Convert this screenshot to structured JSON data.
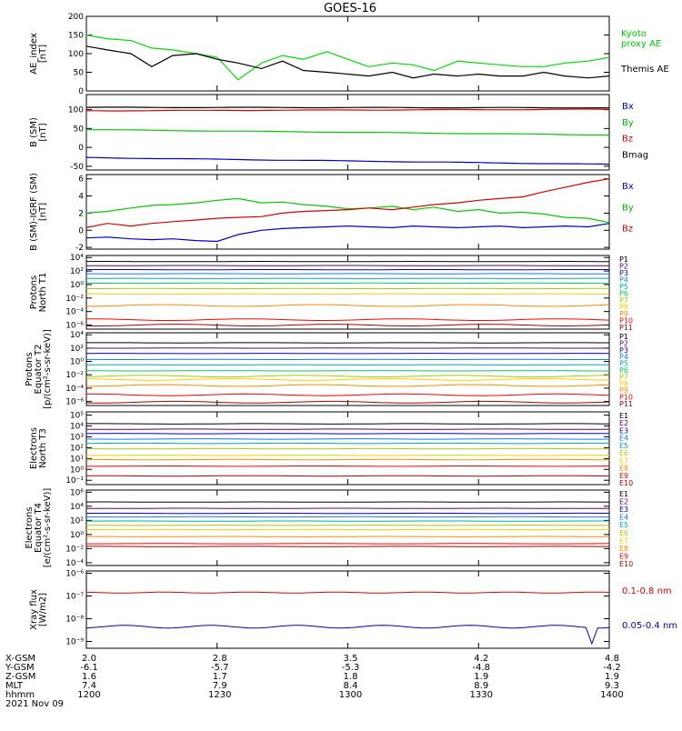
{
  "title": "GOES-16",
  "chart_data": [
    {
      "type": "line",
      "id": "ae",
      "ylabel": "AE_index\n[nT]",
      "yscale": "linear",
      "ylim": [
        0,
        200
      ],
      "yticks": [
        0,
        50,
        100,
        150,
        200
      ],
      "ytick_labels": [
        "0",
        "50",
        "100",
        "150",
        "200"
      ],
      "x_hours": [
        12.0,
        12.08,
        12.17,
        12.25,
        12.33,
        12.42,
        12.5,
        12.58,
        12.67,
        12.75,
        12.83,
        12.92,
        13.0,
        13.08,
        13.17,
        13.25,
        13.33,
        13.42,
        13.5,
        13.58,
        13.67,
        13.75,
        13.83,
        13.92,
        14.0
      ],
      "legend": [
        {
          "label": "Kyoto\nproxy AE",
          "color": "#00cc00"
        },
        {
          "label": "Themis AE",
          "color": "#000000"
        }
      ],
      "series": [
        {
          "name": "Kyoto proxy AE",
          "color": "#00dd00",
          "values": [
            150,
            140,
            135,
            115,
            110,
            100,
            90,
            30,
            75,
            95,
            85,
            105,
            85,
            65,
            75,
            70,
            55,
            80,
            75,
            70,
            65,
            65,
            75,
            80,
            90
          ]
        },
        {
          "name": "Themis AE",
          "color": "#000000",
          "values": [
            120,
            110,
            100,
            65,
            95,
            100,
            85,
            75,
            60,
            80,
            55,
            50,
            45,
            40,
            50,
            35,
            45,
            40,
            45,
            40,
            40,
            50,
            40,
            35,
            40
          ]
        }
      ]
    },
    {
      "type": "line",
      "id": "bsm",
      "ylabel": "B (SM)\n[nT]",
      "yscale": "linear",
      "ylim": [
        -60,
        140
      ],
      "yticks": [
        -50,
        0,
        50,
        100
      ],
      "ytick_labels": [
        "-50",
        "0",
        "50",
        "100"
      ],
      "legend": [
        {
          "label": "Bx",
          "color": "#0000cc"
        },
        {
          "label": "By",
          "color": "#00bb00"
        },
        {
          "label": "Bz",
          "color": "#dd0000"
        },
        {
          "label": "Bmag",
          "color": "#000000"
        }
      ],
      "series": [
        {
          "name": "Bmag",
          "color": "#000000",
          "start": 106,
          "end": 105
        },
        {
          "name": "Bz",
          "color": "#dd0000",
          "start": 97,
          "end": 101
        },
        {
          "name": "By",
          "color": "#00cc00",
          "start": 47,
          "end": 33
        },
        {
          "name": "Bx",
          "color": "#0000cc",
          "start": -27,
          "end": -45
        }
      ]
    },
    {
      "type": "line",
      "id": "bdiff",
      "ylabel": "B (SM)-IGRF (SM)\n[nT]",
      "yscale": "linear",
      "ylim": [
        -2.2,
        6.5
      ],
      "yticks": [
        -2,
        0,
        2,
        4,
        6
      ],
      "ytick_labels": [
        "-2",
        "0",
        "2",
        "4",
        "6"
      ],
      "legend": [
        {
          "label": "Bx",
          "color": "#0000cc"
        },
        {
          "label": "By",
          "color": "#00bb00"
        },
        {
          "label": "Bz",
          "color": "#dd0000"
        }
      ],
      "x_hours": [
        12.0,
        12.08,
        12.17,
        12.25,
        12.33,
        12.42,
        12.5,
        12.58,
        12.67,
        12.75,
        12.83,
        12.92,
        13.0,
        13.08,
        13.17,
        13.25,
        13.33,
        13.42,
        13.5,
        13.58,
        13.67,
        13.75,
        13.83,
        13.92,
        14.0
      ],
      "series": [
        {
          "name": "By",
          "color": "#00cc00",
          "values": [
            2.0,
            2.2,
            2.6,
            2.9,
            3.0,
            3.2,
            3.5,
            3.7,
            3.2,
            3.3,
            3.0,
            2.8,
            2.5,
            2.6,
            2.8,
            2.4,
            2.7,
            2.2,
            2.4,
            2.0,
            2.1,
            1.9,
            1.5,
            1.4,
            0.9
          ]
        },
        {
          "name": "Bz",
          "color": "#dd0000",
          "values": [
            0.3,
            0.8,
            0.5,
            0.8,
            1.0,
            1.2,
            1.4,
            1.5,
            1.6,
            2.0,
            2.2,
            2.3,
            2.4,
            2.6,
            2.4,
            2.7,
            3.0,
            3.2,
            3.5,
            3.7,
            3.9,
            4.5,
            5.0,
            5.6,
            6.0
          ]
        },
        {
          "name": "Bx",
          "color": "#0000cc",
          "values": [
            -0.9,
            -0.8,
            -1.0,
            -1.1,
            -1.0,
            -1.2,
            -1.3,
            -0.5,
            0.0,
            0.2,
            0.3,
            0.4,
            0.5,
            0.4,
            0.3,
            0.5,
            0.4,
            0.3,
            0.4,
            0.5,
            0.3,
            0.4,
            0.5,
            0.4,
            0.8
          ]
        }
      ]
    },
    {
      "type": "line",
      "id": "prot-t1",
      "ylabel": "Protons\nNorth T1",
      "yscale": "log",
      "ylim": [
        -6.6,
        4.3
      ],
      "yticks": [
        4,
        2,
        0,
        -2,
        -4,
        -6
      ],
      "ytick_labels": [
        "10⁴",
        "10²",
        "10⁰",
        "10⁻²",
        "10⁻⁴",
        "10⁻⁶"
      ],
      "legend": [
        {
          "label": "P1",
          "color": "#000000"
        },
        {
          "label": "P2",
          "color": "#660066"
        },
        {
          "label": "P3",
          "color": "#0000cc"
        },
        {
          "label": "P4",
          "color": "#1a75ff"
        },
        {
          "label": "P5",
          "color": "#00aaaa"
        },
        {
          "label": "P6",
          "color": "#00cc66"
        },
        {
          "label": "P7",
          "color": "#aacc00"
        },
        {
          "label": "P8",
          "color": "#ffcc00"
        },
        {
          "label": "P9",
          "color": "#ff8800"
        },
        {
          "label": "P10",
          "color": "#ff0000"
        },
        {
          "label": "P11",
          "color": "#aa0000"
        }
      ],
      "levels": [
        3.4,
        2.8,
        2.2,
        1.6,
        0.9,
        0.2,
        -0.6,
        -1.4,
        -3.1,
        -5.2,
        -6.0
      ]
    },
    {
      "type": "line",
      "id": "prot-t2",
      "ylabel": "Protons\nEquator T2\n[p/(cm²-s-sr-keV)]",
      "yscale": "log",
      "ylim": [
        -6.6,
        4.3
      ],
      "yticks": [
        4,
        2,
        0,
        -2,
        -4,
        -6
      ],
      "ytick_labels": [
        "10⁴",
        "10²",
        "10⁰",
        "10⁻²",
        "10⁻⁴",
        "10⁻⁶"
      ],
      "legend": [
        {
          "label": "P1",
          "color": "#000000"
        },
        {
          "label": "P2",
          "color": "#660066"
        },
        {
          "label": "P3",
          "color": "#0000cc"
        },
        {
          "label": "P4",
          "color": "#1a75ff"
        },
        {
          "label": "P5",
          "color": "#00aaaa"
        },
        {
          "label": "P6",
          "color": "#00cc66"
        },
        {
          "label": "P7",
          "color": "#aacc00"
        },
        {
          "label": "P8",
          "color": "#ffcc00"
        },
        {
          "label": "P9",
          "color": "#ff8800"
        },
        {
          "label": "P10",
          "color": "#ff0000"
        },
        {
          "label": "P11",
          "color": "#aa0000"
        }
      ],
      "levels": [
        2.8,
        2.0,
        1.2,
        0.3,
        -0.5,
        -1.4,
        -2.2,
        -2.7,
        -3.6,
        -5.0,
        -6.1
      ]
    },
    {
      "type": "line",
      "id": "elec-t3",
      "ylabel": "Electrons\nNorth T3",
      "yscale": "log",
      "ylim": [
        -1.4,
        5.3
      ],
      "yticks": [
        5,
        4,
        3,
        2,
        1,
        0,
        -1
      ],
      "ytick_labels": [
        "10⁵",
        "10⁴",
        "10³",
        "10²",
        "10¹",
        "10⁰",
        "10⁻¹"
      ],
      "legend": [
        {
          "label": "E1",
          "color": "#000000"
        },
        {
          "label": "E2",
          "color": "#660066"
        },
        {
          "label": "E3",
          "color": "#0000cc"
        },
        {
          "label": "E4",
          "color": "#1a75ff"
        },
        {
          "label": "E5",
          "color": "#00aaaa"
        },
        {
          "label": "E6",
          "color": "#aacc00"
        },
        {
          "label": "E7",
          "color": "#ffcc00"
        },
        {
          "label": "E8",
          "color": "#ff8800"
        },
        {
          "label": "E9",
          "color": "#ff0000"
        },
        {
          "label": "E10",
          "color": "#aa0000"
        }
      ],
      "levels": [
        4.2,
        3.7,
        3.3,
        2.8,
        2.4,
        1.9,
        1.3,
        0.9,
        0.3,
        -0.6
      ]
    },
    {
      "type": "line",
      "id": "elec-t4",
      "ylabel": "Electrons\nEquator T4\n[e/(cm²-s-sr-keV)]",
      "yscale": "log",
      "ylim": [
        -4.4,
        6.3
      ],
      "yticks": [
        6,
        4,
        2,
        0,
        -2,
        -4
      ],
      "ytick_labels": [
        "10⁶",
        "10⁴",
        "10²",
        "10⁰",
        "10⁻²",
        "10⁻⁴"
      ],
      "legend": [
        {
          "label": "E1",
          "color": "#000000"
        },
        {
          "label": "E2",
          "color": "#660066"
        },
        {
          "label": "E3",
          "color": "#0000cc"
        },
        {
          "label": "E4",
          "color": "#1a75ff"
        },
        {
          "label": "E5",
          "color": "#00aaaa"
        },
        {
          "label": "E6",
          "color": "#aacc00"
        },
        {
          "label": "E7",
          "color": "#ffcc00"
        },
        {
          "label": "E8",
          "color": "#ff8800"
        },
        {
          "label": "E9",
          "color": "#ff0000"
        },
        {
          "label": "E10",
          "color": "#aa0000"
        }
      ],
      "levels": [
        4.6,
        3.7,
        3.0,
        2.5,
        1.9,
        1.3,
        0.7,
        -0.3,
        -1.3,
        -1.7
      ]
    },
    {
      "type": "line",
      "id": "xray",
      "ylabel": "Xray  flux\n[W/m2]",
      "yscale": "log",
      "ylim": [
        -9.3,
        -5.9
      ],
      "yticks": [
        -6,
        -7,
        -8,
        -9
      ],
      "ytick_labels": [
        "10⁻⁶",
        "10⁻⁷",
        "10⁻⁸",
        "10⁻⁹"
      ],
      "legend": [
        {
          "label": "0.1-0.8 nm",
          "color": "#dd0000"
        },
        {
          "label": "0.05-0.4 nm",
          "color": "#0000cc"
        }
      ],
      "series": [
        {
          "name": "0.1-0.8 nm",
          "color": "#dd0000",
          "level": -6.85
        },
        {
          "name": "0.05-0.4 nm",
          "color": "#0000cc",
          "level": -8.35
        }
      ]
    }
  ],
  "x_axis": {
    "row_labels": [
      "X-GSM",
      "Y-GSM",
      "Z-GSM",
      "MLT",
      "hhmm",
      "2021 Nov 09"
    ],
    "columns": [
      [
        "2.0",
        "-6.1",
        "1.6",
        "7.4",
        "1200"
      ],
      [
        "2.8",
        "-5.7",
        "1.7",
        "7.9",
        "1230"
      ],
      [
        "3.5",
        "-5.3",
        "1.8",
        "8.4",
        "1300"
      ],
      [
        "4.2",
        "-4.8",
        "1.9",
        "8.9",
        "1330"
      ],
      [
        "4.8",
        "-4.2",
        "1.9",
        "9.3",
        "1400"
      ]
    ]
  }
}
